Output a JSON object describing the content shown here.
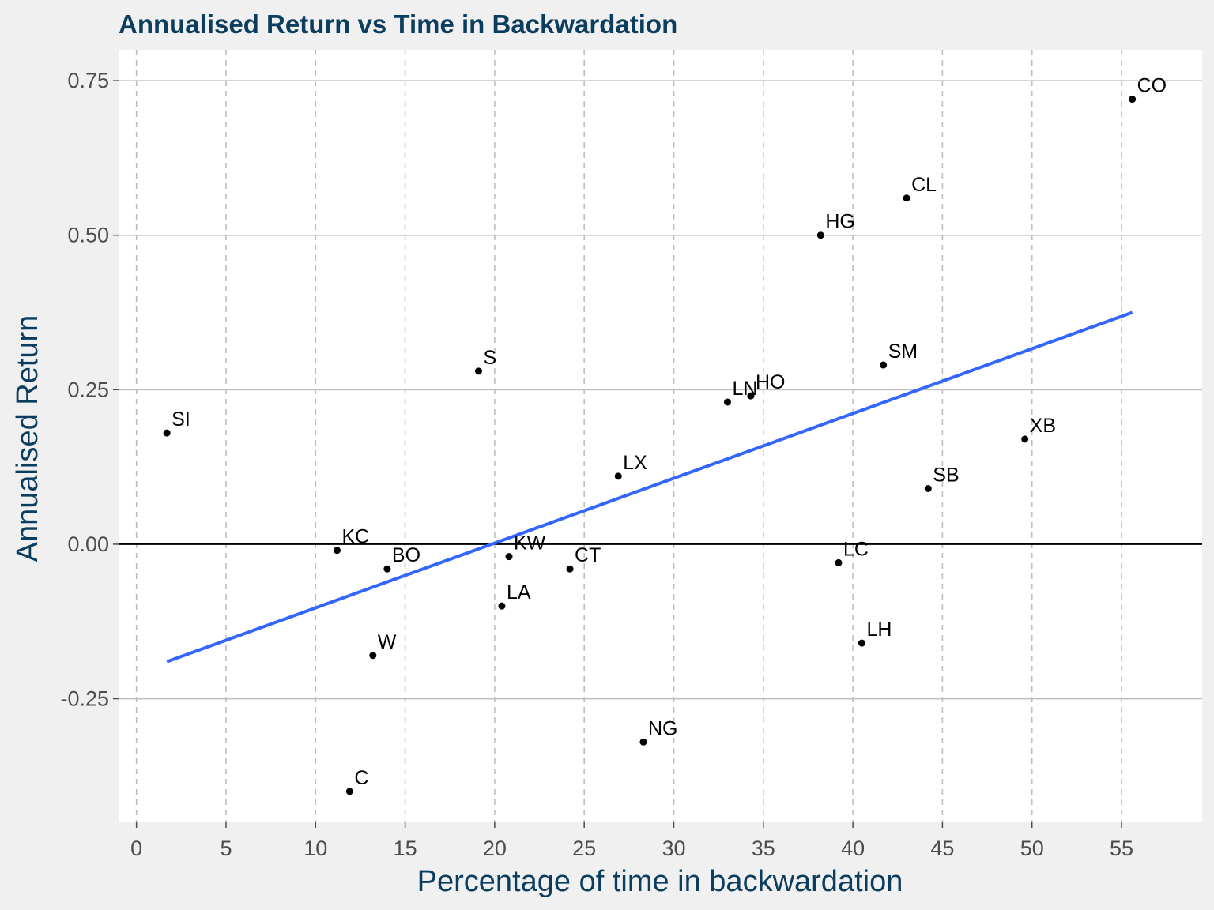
{
  "chart_data": {
    "type": "scatter",
    "title": "Annualised Return vs Time in Backwardation",
    "xlabel": "Percentage of time in backwardation",
    "ylabel": "Annualised Return",
    "xlim": [
      -1,
      59.5
    ],
    "ylim": [
      -0.45,
      0.8
    ],
    "x_ticks": [
      0,
      5,
      10,
      15,
      20,
      25,
      30,
      35,
      40,
      45,
      50,
      55
    ],
    "x_tick_labels": [
      "0",
      "5",
      "10",
      "15",
      "20",
      "25",
      "30",
      "35",
      "40",
      "45",
      "50",
      "55"
    ],
    "y_ticks": [
      -0.25,
      0,
      0.25,
      0.5,
      0.75
    ],
    "y_tick_labels": [
      "-0.25",
      "0.00",
      "0.25",
      "0.50",
      "0.75"
    ],
    "grid": true,
    "zero_line": true,
    "points": [
      {
        "label": "CO",
        "x": 55.6,
        "y": 0.72
      },
      {
        "label": "CL",
        "x": 43.0,
        "y": 0.56
      },
      {
        "label": "HG",
        "x": 38.2,
        "y": 0.5
      },
      {
        "label": "SM",
        "x": 41.7,
        "y": 0.29
      },
      {
        "label": "S",
        "x": 19.1,
        "y": 0.28
      },
      {
        "label": "LN",
        "x": 33.0,
        "y": 0.23
      },
      {
        "label": "HO",
        "x": 34.3,
        "y": 0.24
      },
      {
        "label": "SI",
        "x": 1.7,
        "y": 0.18
      },
      {
        "label": "XB",
        "x": 49.6,
        "y": 0.17
      },
      {
        "label": "LX",
        "x": 26.9,
        "y": 0.11
      },
      {
        "label": "SB",
        "x": 44.2,
        "y": 0.09
      },
      {
        "label": "KC",
        "x": 11.2,
        "y": -0.01
      },
      {
        "label": "KW",
        "x": 20.8,
        "y": -0.02
      },
      {
        "label": "BO",
        "x": 14.0,
        "y": -0.04
      },
      {
        "label": "CT",
        "x": 24.2,
        "y": -0.04
      },
      {
        "label": "LC",
        "x": 39.2,
        "y": -0.03
      },
      {
        "label": "LA",
        "x": 20.4,
        "y": -0.1
      },
      {
        "label": "W",
        "x": 13.2,
        "y": -0.18
      },
      {
        "label": "LH",
        "x": 40.5,
        "y": -0.16
      },
      {
        "label": "NG",
        "x": 28.3,
        "y": -0.32
      },
      {
        "label": "C",
        "x": 11.9,
        "y": -0.4
      }
    ],
    "trend_line": {
      "x": [
        1.7,
        55.6
      ],
      "y": [
        -0.19,
        0.375
      ],
      "color": "#3366ff"
    },
    "colors": {
      "panel": "#ffffff",
      "background": "#f0f0f0",
      "title": "#0b3d5e",
      "point": "#000000",
      "grid": "#bdbdbd"
    }
  }
}
